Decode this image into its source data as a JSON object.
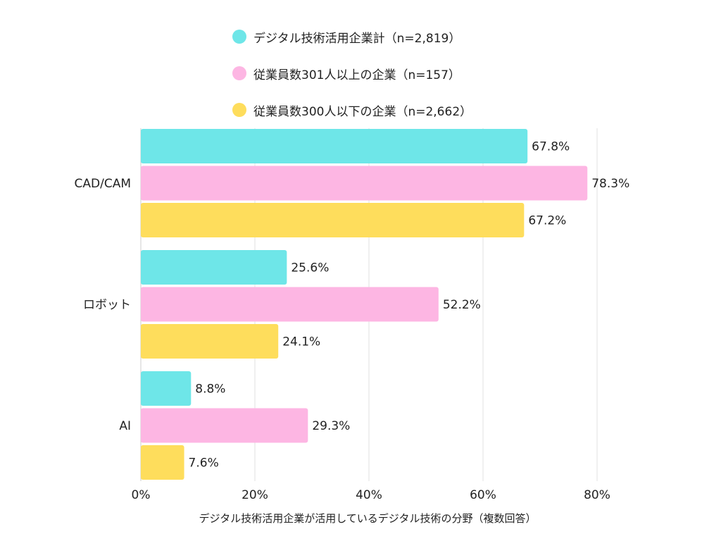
{
  "chart_data": {
    "type": "bar",
    "orientation": "horizontal",
    "categories": [
      "CAD/CAM",
      "ロボット",
      "AI"
    ],
    "series": [
      {
        "name": "デジタル技術活用企業計（n=2,819）",
        "color": "#6ee6e8",
        "values": [
          67.8,
          25.6,
          8.8
        ]
      },
      {
        "name": "従業員数301人以上の企業（n=157）",
        "color": "#fdb6e3",
        "values": [
          78.3,
          52.2,
          29.3
        ]
      },
      {
        "name": "従業員数300人以下の企業（n=2,662）",
        "color": "#fedd5c",
        "values": [
          67.2,
          24.1,
          7.6
        ]
      }
    ],
    "data_labels": [
      [
        "67.8%",
        "25.6%",
        "8.8%"
      ],
      [
        "78.3%",
        "52.2%",
        "29.3%"
      ],
      [
        "67.2%",
        "24.1%",
        "7.6%"
      ]
    ],
    "xlim": [
      0,
      80
    ],
    "xticks": [
      0,
      20,
      40,
      60,
      80
    ],
    "xtick_labels": [
      "0%",
      "20%",
      "40%",
      "60%",
      "80%"
    ],
    "xlabel": "デジタル技術活用企業が活用しているデジタル技術の分野（複数回答）",
    "ylabel": "",
    "title": "",
    "grid": true,
    "legend_position": "top"
  }
}
